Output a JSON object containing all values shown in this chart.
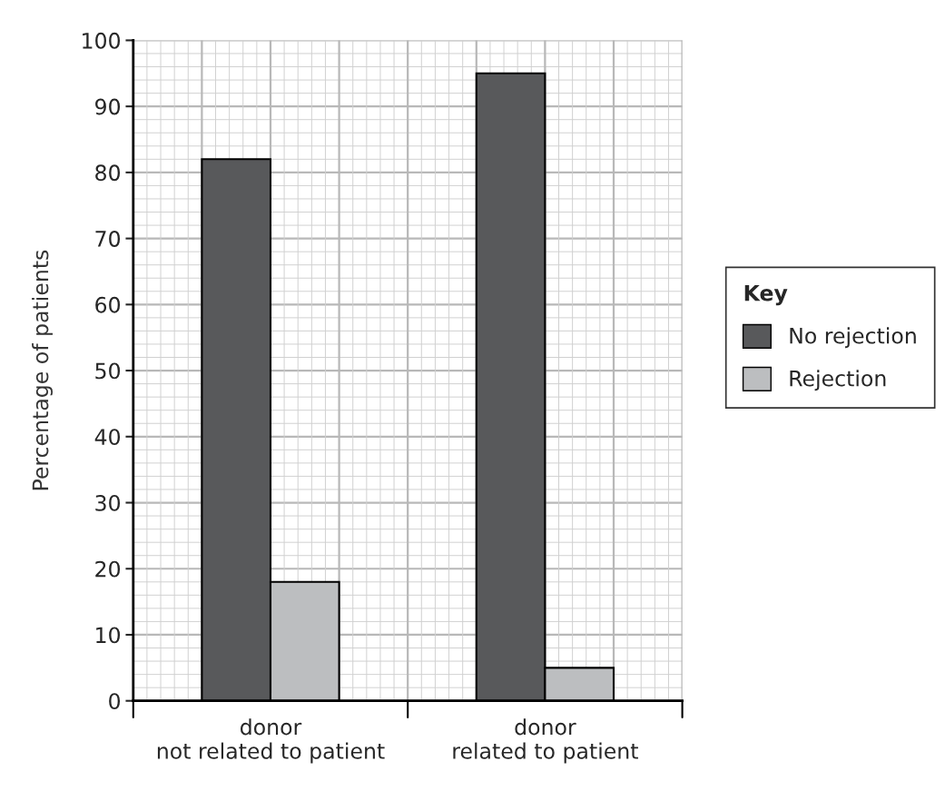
{
  "chart_data": {
    "type": "bar",
    "ylabel": "Percentage of patients",
    "legend_title": "Key",
    "categories": [
      "donor\nnot related to patient",
      "donor\nrelated to patient"
    ],
    "series": [
      {
        "name": "No rejection",
        "color": "#58595b",
        "values": [
          82,
          95
        ]
      },
      {
        "name": "Rejection",
        "color": "#bcbec0",
        "values": [
          18,
          5
        ]
      }
    ],
    "ylim": [
      0,
      100
    ],
    "yticks": [
      0,
      10,
      20,
      30,
      40,
      50,
      60,
      70,
      80,
      90,
      100
    ],
    "grid": true,
    "legend": "right"
  }
}
